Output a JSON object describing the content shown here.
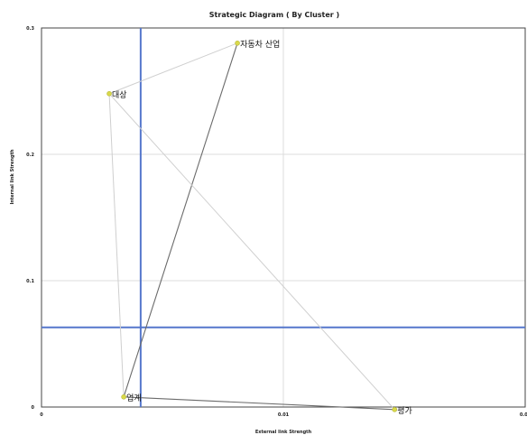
{
  "chart_data": {
    "type": "scatter",
    "title": "Strategic Diagram ( By Cluster )",
    "xlabel": "External link Strength",
    "ylabel": "Internal link Strength",
    "xlim": [
      0,
      0.02
    ],
    "ylim": [
      0,
      0.3
    ],
    "x_ticks": [
      "0",
      "0.01",
      "0.02"
    ],
    "y_ticks": [
      "0",
      "0.1",
      "0.2",
      "0.3"
    ],
    "grid": true,
    "points": [
      {
        "label": "자동차 산업",
        "x": 0.0081,
        "y": 0.288
      },
      {
        "label": "대상",
        "x": 0.0028,
        "y": 0.248
      },
      {
        "label": "업계",
        "x": 0.0034,
        "y": 0.008
      },
      {
        "label": "평가",
        "x": 0.0146,
        "y": -0.002
      }
    ],
    "links": [
      {
        "from": "자동차 산업",
        "to": "업계",
        "style": "dark"
      },
      {
        "from": "자동차 산업",
        "to": "대상",
        "style": "light"
      },
      {
        "from": "대상",
        "to": "업계",
        "style": "light"
      },
      {
        "from": "대상",
        "to": "평가",
        "style": "light"
      },
      {
        "from": "업계",
        "to": "평가",
        "style": "dark"
      }
    ],
    "reference_lines": {
      "x": 0.0041,
      "y": 0.063
    },
    "colors": {
      "point": "#d9d94a",
      "reference": "#5577cc",
      "link_dark": "#6b6b6b",
      "link_light": "#cfcfcf",
      "grid": "#dcdcdc"
    }
  }
}
